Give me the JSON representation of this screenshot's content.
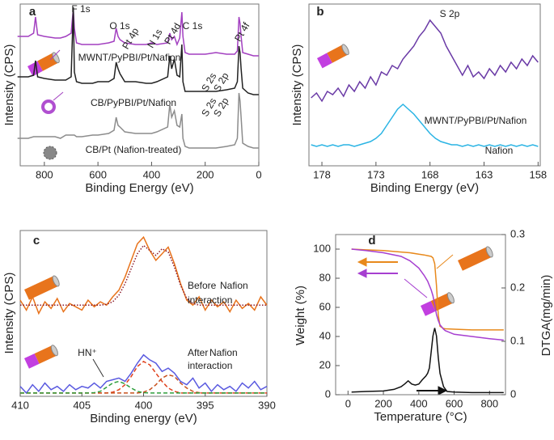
{
  "chart_data": [
    {
      "type": "line",
      "label": "a",
      "xlabel": "Binding Energy (eV)",
      "ylabel": "Intensity (CPS)",
      "xlim": [
        890,
        0
      ],
      "xticks": [
        800,
        600,
        400,
        200,
        0
      ],
      "ylim": [
        0,
        100
      ],
      "x": [
        900,
        860,
        840,
        833,
        825,
        800,
        760,
        740,
        720,
        700,
        692,
        688,
        680,
        660,
        620,
        600,
        560,
        540,
        532,
        525,
        518,
        500,
        460,
        420,
        400,
        380,
        340,
        332,
        325,
        315,
        305,
        295,
        287,
        283,
        275,
        260,
        240,
        200,
        160,
        120,
        90,
        80,
        74,
        70,
        66,
        60,
        40,
        20,
        0
      ],
      "series": [
        {
          "name": "MWNT/PyPBI/Pt/Nafion",
          "color": "#a23fc0",
          "values": [
            80,
            80,
            82,
            92,
            81,
            80,
            79,
            79,
            80,
            82,
            97,
            85,
            76,
            75,
            75,
            75,
            76,
            77,
            85,
            80,
            78,
            76,
            75,
            75,
            76,
            75,
            76,
            82,
            78,
            80,
            75,
            79,
            95,
            80,
            70,
            69,
            69,
            69,
            70,
            69,
            69,
            71,
            92,
            88,
            80,
            70,
            69,
            68,
            68
          ]
        },
        {
          "name": "CB/PyPBI/Pt/Nafion",
          "color": "#222222",
          "values": [
            55,
            55,
            56,
            65,
            55,
            54,
            53,
            53,
            53,
            55,
            98,
            58,
            52,
            51,
            51,
            52,
            52,
            54,
            64,
            60,
            57,
            52,
            52,
            51,
            51,
            52,
            55,
            68,
            60,
            66,
            56,
            55,
            75,
            52,
            46,
            46,
            46,
            46,
            46,
            47,
            48,
            52,
            74,
            70,
            60,
            48,
            45,
            44,
            44
          ]
        },
        {
          "name": "CB/Pt (Nafion-treated)",
          "color": "#8c8c8c",
          "values": [
            17,
            17,
            18,
            18,
            18,
            18,
            18,
            17,
            19,
            19,
            19,
            19,
            18,
            18,
            19,
            19,
            20,
            22,
            30,
            25,
            24,
            21,
            20,
            20,
            20,
            21,
            24,
            38,
            30,
            34,
            25,
            24,
            32,
            17,
            12,
            11,
            11,
            11,
            11,
            12,
            13,
            17,
            45,
            40,
            30,
            14,
            12,
            11,
            11
          ]
        }
      ],
      "annotations": [
        "F 1s",
        "O 1s",
        "Pt 4p",
        "N 1s",
        "Pt 4d",
        "C 1s",
        "S 2s",
        "S 2p",
        "Pt 4f",
        "S 2s",
        "S 2p"
      ]
    },
    {
      "type": "line",
      "label": "b",
      "xlabel": "Binding Energy (eV)",
      "ylabel": "Intensity (CPS)",
      "xlim": [
        179.2,
        157.8
      ],
      "xticks": [
        178,
        173,
        168,
        163,
        158
      ],
      "ylim": [
        0,
        100
      ],
      "x": [
        179,
        178.5,
        178,
        177.5,
        177,
        176.5,
        176,
        175.5,
        175,
        174.5,
        174,
        173.5,
        173,
        172.5,
        172,
        171.5,
        171,
        170.5,
        170,
        169.5,
        169,
        168.5,
        168,
        167.5,
        167,
        166.5,
        166,
        165.5,
        165,
        164.5,
        164,
        163.5,
        163,
        162.5,
        162,
        161.5,
        161,
        160.5,
        160,
        159.5,
        159,
        158.5,
        158
      ],
      "series": [
        {
          "name": "MWNT/PyPBI/Pt/Nafion",
          "color": "#6a3aa6",
          "values": [
            42,
            45,
            40,
            46,
            44,
            48,
            43,
            50,
            46,
            52,
            48,
            55,
            50,
            58,
            56,
            62,
            60,
            66,
            70,
            74,
            80,
            84,
            90,
            86,
            82,
            74,
            68,
            62,
            56,
            62,
            55,
            58,
            54,
            60,
            56,
            62,
            58,
            64,
            60,
            66,
            62,
            68,
            64
          ]
        },
        {
          "name": "Nafion",
          "color": "#2ab4e4",
          "values": [
            13,
            12,
            13,
            12,
            13,
            12,
            13,
            13,
            12,
            13,
            14,
            15,
            17,
            20,
            25,
            30,
            35,
            38,
            35,
            32,
            28,
            24,
            20,
            17,
            15,
            14,
            13,
            13,
            12,
            13,
            12,
            13,
            12,
            13,
            12,
            13,
            12,
            13,
            12,
            13,
            12,
            13,
            12
          ]
        }
      ],
      "annotations": [
        "S 2p"
      ]
    },
    {
      "type": "line",
      "label": "c",
      "xlabel": "Binding energy (eV)",
      "ylabel": "Intensity (CPS)",
      "xlim": [
        410,
        390
      ],
      "xticks": [
        410,
        405,
        400,
        395,
        390
      ],
      "ylim": [
        0,
        100
      ],
      "x": [
        410,
        409.5,
        409,
        408.5,
        408,
        407.5,
        407,
        406.5,
        406,
        405.5,
        405,
        404.5,
        404,
        403.5,
        403,
        402.5,
        402,
        401.5,
        401,
        400.5,
        400,
        399.5,
        399,
        398.5,
        398,
        397.5,
        397,
        396.5,
        396,
        395.5,
        395,
        394.5,
        394,
        393.5,
        393,
        392.5,
        392,
        391.5,
        391,
        390.5,
        390
      ],
      "series": [
        {
          "color": "#e8731c",
          "style": "solid",
          "values": [
            58,
            52,
            60,
            50,
            57,
            53,
            59,
            51,
            56,
            54,
            52,
            58,
            54,
            57,
            55,
            60,
            64,
            72,
            82,
            92,
            96,
            88,
            82,
            86,
            90,
            80,
            68,
            58,
            55,
            60,
            52,
            58,
            54,
            57,
            51,
            58,
            53,
            56,
            52,
            60,
            55
          ]
        },
        {
          "color": "#8b1a2a",
          "style": "dotted",
          "values": [
            55,
            55,
            55,
            55,
            55,
            55,
            55,
            55,
            55,
            55,
            55,
            55,
            55,
            55,
            55.5,
            57,
            61,
            68,
            77,
            86,
            91,
            88,
            85,
            89,
            87,
            78,
            67,
            59,
            56,
            55,
            55,
            55,
            55,
            55,
            55,
            55,
            55,
            55,
            55,
            55,
            55
          ]
        },
        {
          "color": "#5a5ae0",
          "style": "solid",
          "values": [
            6,
            2,
            7,
            3,
            8,
            4,
            6,
            3,
            7,
            4,
            6,
            5,
            8,
            5,
            9,
            10,
            11,
            9,
            14,
            20,
            25,
            22,
            20,
            15,
            17,
            14,
            9,
            7,
            11,
            5,
            8,
            3,
            7,
            4,
            6,
            3,
            8,
            5,
            9,
            4,
            6
          ]
        },
        {
          "color": "#e0401c",
          "style": "dashed",
          "values": [
            2,
            2,
            2,
            2,
            2,
            2,
            2,
            2,
            2,
            2,
            2,
            2,
            2,
            2,
            2,
            2.5,
            4,
            7,
            12,
            18,
            21,
            19,
            14,
            9,
            5,
            3,
            2,
            2,
            2,
            2,
            2,
            2,
            2,
            2,
            2,
            2,
            2,
            2,
            2,
            2,
            2
          ]
        },
        {
          "color": "#c8501c",
          "style": "dashed",
          "values": [
            2,
            2,
            2,
            2,
            2,
            2,
            2,
            2,
            2,
            2,
            2,
            2,
            2,
            2,
            2,
            2,
            2,
            2,
            2,
            2,
            2.5,
            4,
            7,
            11,
            13,
            12,
            8,
            5,
            3,
            2.2,
            2,
            2,
            2,
            2,
            2,
            2,
            2,
            2,
            2,
            2,
            2
          ]
        },
        {
          "color": "#2e9e3c",
          "style": "dashed",
          "values": [
            2,
            2,
            2,
            2,
            2,
            2,
            2,
            2,
            2,
            2,
            2,
            2,
            2.2,
            3,
            5.5,
            8,
            9,
            7.5,
            5,
            3,
            2.2,
            2,
            2,
            2,
            2,
            2,
            2,
            2,
            2,
            2,
            2,
            2,
            2,
            2,
            2,
            2,
            2,
            2,
            2,
            2,
            2
          ]
        }
      ],
      "annotations": [
        "HN⁺",
        "Before",
        "Nafion",
        "interaction",
        "After",
        "Nafion",
        "interaction"
      ]
    },
    {
      "type": "line",
      "label": "d",
      "xlabel": "Temperature (°C)",
      "ylabel": "Weight (%)",
      "y2label": "DTGA(mg/min)",
      "xlim": [
        -70,
        890
      ],
      "xticks": [
        0,
        200,
        400,
        600,
        800
      ],
      "ylim": [
        0,
        110
      ],
      "yticks": [
        0,
        20,
        40,
        60,
        80,
        100
      ],
      "y2lim": [
        0,
        0.3
      ],
      "y2ticks": [
        0,
        0.1,
        0.2,
        0.3
      ],
      "series": [
        {
          "color": "#e8891c",
          "x": [
            20,
            100,
            200,
            300,
            350,
            400,
            430,
            450,
            470,
            480,
            490,
            500,
            510,
            520,
            540,
            550,
            600,
            700,
            800,
            880
          ],
          "values": [
            100,
            99.5,
            99,
            98,
            97.5,
            96.5,
            96,
            95.5,
            95,
            94,
            90,
            75,
            55,
            47,
            45.5,
            45.3,
            45,
            44.5,
            44.5,
            44.5
          ]
        },
        {
          "color": "#a63fd0",
          "x": [
            20,
            100,
            200,
            300,
            350,
            400,
            430,
            450,
            470,
            480,
            490,
            500,
            510,
            520,
            540,
            550,
            600,
            700,
            800,
            880
          ],
          "values": [
            100,
            99,
            97.5,
            95,
            92,
            87,
            82,
            78,
            72,
            68,
            62,
            55,
            51,
            48,
            45,
            44,
            41.5,
            40,
            38.5,
            37.5
          ]
        },
        {
          "color": "#111111",
          "axis": "y2",
          "x": [
            20,
            100,
            200,
            260,
            300,
            320,
            340,
            360,
            380,
            400,
            420,
            440,
            450,
            460,
            470,
            480,
            490,
            500,
            510,
            520,
            540,
            560,
            600,
            700,
            800,
            880
          ],
          "values": [
            0.005,
            0.006,
            0.007,
            0.01,
            0.015,
            0.02,
            0.026,
            0.02,
            0.018,
            0.02,
            0.028,
            0.035,
            0.04,
            0.05,
            0.08,
            0.11,
            0.125,
            0.11,
            0.07,
            0.04,
            0.015,
            0.006,
            0.005,
            0.004,
            0.004,
            0.004
          ]
        }
      ]
    }
  ]
}
